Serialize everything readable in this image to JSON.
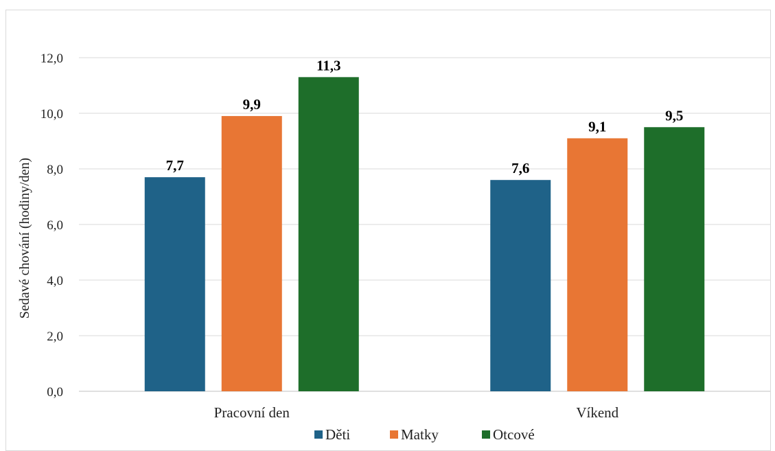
{
  "chart_data": {
    "type": "bar",
    "categories": [
      "Pracovní den",
      "Víkend"
    ],
    "series": [
      {
        "name": "Děti",
        "color": "#1f6288",
        "values": [
          7.7,
          7.6
        ]
      },
      {
        "name": "Matky",
        "color": "#e87634",
        "values": [
          9.9,
          9.1
        ]
      },
      {
        "name": "Otcové",
        "color": "#1e6e2a",
        "values": [
          11.3,
          9.5
        ]
      }
    ],
    "data_labels": [
      [
        "7,7",
        "7,6"
      ],
      [
        "9,9",
        "9,1"
      ],
      [
        "11,3",
        "9,5"
      ]
    ],
    "ylabel": "Sedavé chování  (hodiny/den)",
    "ylim": [
      0,
      12
    ],
    "yticks": [
      0,
      2,
      4,
      6,
      8,
      10,
      12
    ],
    "ytick_labels": [
      "0,0",
      "2,0",
      "4,0",
      "6,0",
      "8,0",
      "10,0",
      "12,0"
    ],
    "grid": true,
    "legend_position": "bottom"
  }
}
